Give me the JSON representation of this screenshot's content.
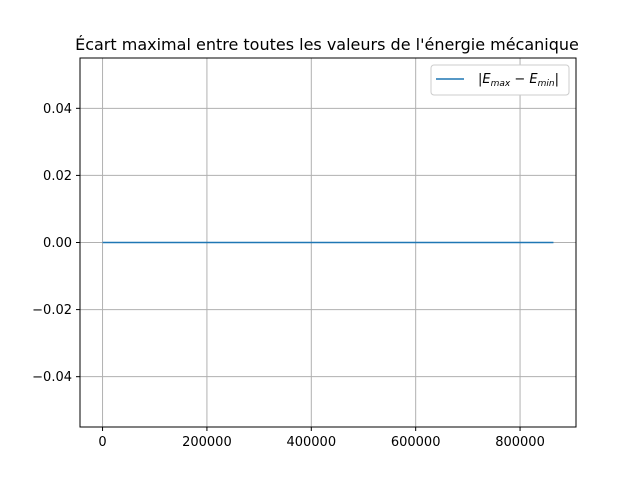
{
  "chart_data": {
    "type": "line",
    "title": "Écart maximal entre toutes les valeurs de l'énergie mécanique",
    "xlabel": "",
    "ylabel": "",
    "xlim": [
      -43200,
      907200
    ],
    "ylim": [
      -0.055,
      0.055
    ],
    "x_ticks": [
      0,
      200000,
      400000,
      600000,
      800000
    ],
    "x_tick_labels": [
      "0",
      "200000",
      "400000",
      "600000",
      "800000"
    ],
    "y_ticks": [
      -0.04,
      -0.02,
      0.0,
      0.02,
      0.04
    ],
    "y_tick_labels": [
      "−0.04",
      "−0.02",
      "0.00",
      "0.02",
      "0.04"
    ],
    "grid": true,
    "legend_position": "upper right",
    "series": [
      {
        "name": "|E_max − E_min|",
        "x": [
          0,
          864000
        ],
        "y": [
          0,
          0
        ],
        "color": "#1f77b4"
      }
    ]
  },
  "legend": {
    "label": {
      "bar_open": "|",
      "E1": "E",
      "sub1": "max",
      "minus": " − ",
      "E2": "E",
      "sub2": "min",
      "bar_close": "|"
    }
  },
  "colors": {
    "series": "#1f77b4",
    "grid": "#b0b0b0",
    "axes": "#000000"
  }
}
